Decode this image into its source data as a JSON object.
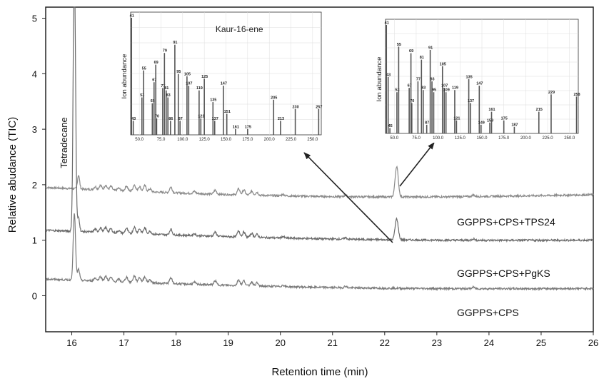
{
  "chart_data": {
    "type": "line",
    "title": "",
    "xlabel": "Retention time (min)",
    "ylabel": "Relative abudance (TIC)",
    "xlim": [
      15.5,
      26
    ],
    "ylim": [
      -0.65,
      5.2
    ],
    "x_ticks": [
      "16",
      "17",
      "18",
      "19",
      "20",
      "21",
      "22",
      "23",
      "24",
      "25",
      "26"
    ],
    "y_ticks": [
      "0",
      "1",
      "2",
      "3",
      "4",
      "5"
    ],
    "grid": false,
    "series": [
      {
        "name": "GGPPS+CPS+TPS24",
        "color": "#8a8a8a",
        "baseline_start": 1.95,
        "baseline_end": 1.82,
        "peaks": [
          [
            16.13,
            0.25
          ],
          [
            16.6,
            0.1
          ],
          [
            17.2,
            0.12
          ],
          [
            17.9,
            0.1
          ],
          [
            18.8,
            0.1
          ],
          [
            19.3,
            0.12
          ],
          [
            22.23,
            0.55
          ]
        ]
      },
      {
        "name": "GGPPS+CPS+PgKS",
        "color": "#6a6a6a",
        "baseline_start": 1.18,
        "baseline_end": 1.0,
        "peaks": [
          [
            16.05,
            5.0
          ],
          [
            16.13,
            0.25
          ],
          [
            16.6,
            0.1
          ],
          [
            17.2,
            0.12
          ],
          [
            17.9,
            0.1
          ],
          [
            18.8,
            0.1
          ],
          [
            19.3,
            0.12
          ],
          [
            22.23,
            0.38
          ]
        ]
      },
      {
        "name": "GGPPS+CPS",
        "color": "#7a7a7a",
        "baseline_start": 0.3,
        "baseline_end": 0.13,
        "peaks": [
          [
            16.05,
            1.2
          ],
          [
            16.13,
            0.2
          ],
          [
            16.6,
            0.1
          ],
          [
            17.2,
            0.12
          ],
          [
            17.9,
            0.1
          ],
          [
            18.8,
            0.1
          ],
          [
            19.3,
            0.12
          ]
        ]
      }
    ],
    "annotations": [
      {
        "text": "Tetradecane",
        "x": 15.9,
        "y": 3.0
      }
    ],
    "insets": [
      {
        "title": "Kaur-16-ene",
        "ylabel": "Ion abundance",
        "xlim": [
          40,
          260
        ],
        "x_ticks": [
          "50.0",
          "75.0",
          "100.0",
          "125.0",
          "150.0",
          "175.0",
          "200.0",
          "225.0",
          "250.0"
        ],
        "bars": [
          {
            "x": 41,
            "y": 100,
            "label": "41"
          },
          {
            "x": 43,
            "y": 12,
            "label": "43"
          },
          {
            "x": 53,
            "y": 32,
            "label": "53"
          },
          {
            "x": 55,
            "y": 55,
            "label": "55"
          },
          {
            "x": 65,
            "y": 27,
            "label": "65"
          },
          {
            "x": 67,
            "y": 45,
            "label": "67"
          },
          {
            "x": 69,
            "y": 60,
            "label": "69"
          },
          {
            "x": 70,
            "y": 14,
            "label": "70"
          },
          {
            "x": 77,
            "y": 40,
            "label": "77"
          },
          {
            "x": 79,
            "y": 70,
            "label": "79"
          },
          {
            "x": 81,
            "y": 38,
            "label": "81"
          },
          {
            "x": 83,
            "y": 32,
            "label": "83"
          },
          {
            "x": 86,
            "y": 12,
            "label": "86"
          },
          {
            "x": 91,
            "y": 77,
            "label": "91"
          },
          {
            "x": 95,
            "y": 52,
            "label": "95"
          },
          {
            "x": 97,
            "y": 12,
            "label": "97"
          },
          {
            "x": 105,
            "y": 50,
            "label": "105"
          },
          {
            "x": 107,
            "y": 42,
            "label": "107"
          },
          {
            "x": 119,
            "y": 38,
            "label": "119"
          },
          {
            "x": 121,
            "y": 14,
            "label": "121"
          },
          {
            "x": 125,
            "y": 48,
            "label": "125"
          },
          {
            "x": 135,
            "y": 28,
            "label": "135"
          },
          {
            "x": 137,
            "y": 12,
            "label": "137"
          },
          {
            "x": 147,
            "y": 42,
            "label": "147"
          },
          {
            "x": 151,
            "y": 18,
            "label": "151"
          },
          {
            "x": 161,
            "y": 5,
            "label": "161"
          },
          {
            "x": 175,
            "y": 5,
            "label": "175"
          },
          {
            "x": 205,
            "y": 30,
            "label": "205"
          },
          {
            "x": 213,
            "y": 12,
            "label": "213"
          },
          {
            "x": 230,
            "y": 22,
            "label": "230"
          },
          {
            "x": 257,
            "y": 22,
            "label": "257"
          }
        ]
      },
      {
        "title": "",
        "ylabel": "Ion abundance",
        "xlim": [
          40,
          260
        ],
        "x_ticks": [
          "50.0",
          "75.0",
          "100.0",
          "125.0",
          "150.0",
          "175.0",
          "200.0",
          "225.0",
          "250.0"
        ],
        "bars": [
          {
            "x": 41,
            "y": 100,
            "label": "41"
          },
          {
            "x": 43,
            "y": 52,
            "label": "43"
          },
          {
            "x": 45,
            "y": 5,
            "label": "45"
          },
          {
            "x": 53,
            "y": 38,
            "label": "53"
          },
          {
            "x": 55,
            "y": 80,
            "label": "55"
          },
          {
            "x": 67,
            "y": 42,
            "label": "67"
          },
          {
            "x": 69,
            "y": 74,
            "label": "69"
          },
          {
            "x": 70,
            "y": 28,
            "label": "70"
          },
          {
            "x": 77,
            "y": 48,
            "label": "77"
          },
          {
            "x": 81,
            "y": 68,
            "label": "81"
          },
          {
            "x": 83,
            "y": 40,
            "label": "83"
          },
          {
            "x": 87,
            "y": 8,
            "label": "87"
          },
          {
            "x": 91,
            "y": 77,
            "label": "91"
          },
          {
            "x": 93,
            "y": 48,
            "label": "93"
          },
          {
            "x": 95,
            "y": 38,
            "label": "95"
          },
          {
            "x": 105,
            "y": 62,
            "label": "105"
          },
          {
            "x": 107,
            "y": 42,
            "label": "107"
          },
          {
            "x": 109,
            "y": 38,
            "label": "109"
          },
          {
            "x": 119,
            "y": 40,
            "label": "119"
          },
          {
            "x": 121,
            "y": 12,
            "label": "121"
          },
          {
            "x": 135,
            "y": 50,
            "label": "135"
          },
          {
            "x": 137,
            "y": 28,
            "label": "137"
          },
          {
            "x": 147,
            "y": 44,
            "label": "147"
          },
          {
            "x": 149,
            "y": 8,
            "label": "149"
          },
          {
            "x": 159,
            "y": 10,
            "label": "159"
          },
          {
            "x": 161,
            "y": 20,
            "label": "161"
          },
          {
            "x": 175,
            "y": 12,
            "label": "175"
          },
          {
            "x": 187,
            "y": 6,
            "label": "187"
          },
          {
            "x": 215,
            "y": 20,
            "label": "215"
          },
          {
            "x": 229,
            "y": 36,
            "label": "229"
          },
          {
            "x": 258,
            "y": 34,
            "label": "258"
          }
        ]
      }
    ]
  },
  "colors": {
    "axis": "#222222",
    "arrow": "#222222"
  }
}
